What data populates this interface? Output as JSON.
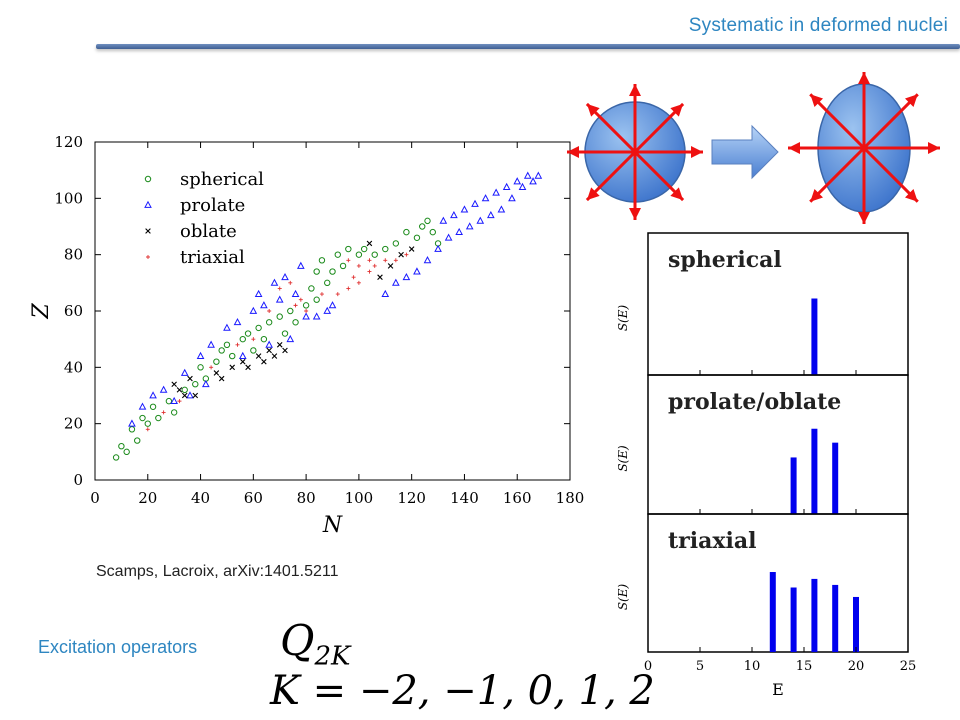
{
  "slide": {
    "title": "Systematic in deformed nuclei",
    "citation": "Scamps, Lacroix, arXiv:1401.5211",
    "excitation_label": "Excitation operators",
    "formula_operator": "Q",
    "formula_operator_sub": "2K",
    "formula_k": "K = −2, −1, 0, 1, 2"
  },
  "colors": {
    "title_blue": "#2e86c1",
    "spherical": "#1a8a1a",
    "prolate": "#1a1aff",
    "oblate": "#000000",
    "triaxial": "#e03030",
    "bar_blue": "#0000ee",
    "arrow_red": "#ee1111"
  },
  "chart_data": [
    {
      "type": "scatter",
      "title": "",
      "xlabel": "N",
      "ylabel": "Z",
      "xlim": [
        0,
        180
      ],
      "ylim": [
        0,
        120
      ],
      "xticks": [
        0,
        20,
        40,
        60,
        80,
        100,
        120,
        140,
        160,
        180
      ],
      "yticks": [
        0,
        20,
        40,
        60,
        80,
        100,
        120
      ],
      "legend": {
        "position": "top-left"
      },
      "series": [
        {
          "name": "spherical",
          "marker": "circle",
          "points": [
            [
              8,
              8
            ],
            [
              10,
              12
            ],
            [
              12,
              10
            ],
            [
              14,
              18
            ],
            [
              16,
              14
            ],
            [
              18,
              22
            ],
            [
              20,
              20
            ],
            [
              22,
              26
            ],
            [
              24,
              22
            ],
            [
              28,
              28
            ],
            [
              30,
              24
            ],
            [
              34,
              32
            ],
            [
              38,
              34
            ],
            [
              40,
              40
            ],
            [
              42,
              36
            ],
            [
              46,
              42
            ],
            [
              48,
              46
            ],
            [
              50,
              48
            ],
            [
              52,
              44
            ],
            [
              56,
              50
            ],
            [
              58,
              52
            ],
            [
              60,
              46
            ],
            [
              62,
              54
            ],
            [
              64,
              50
            ],
            [
              66,
              56
            ],
            [
              70,
              58
            ],
            [
              72,
              52
            ],
            [
              74,
              60
            ],
            [
              76,
              56
            ],
            [
              80,
              62
            ],
            [
              82,
              68
            ],
            [
              84,
              74
            ],
            [
              84,
              64
            ],
            [
              86,
              78
            ],
            [
              88,
              70
            ],
            [
              90,
              74
            ],
            [
              92,
              80
            ],
            [
              94,
              76
            ],
            [
              96,
              82
            ],
            [
              100,
              80
            ],
            [
              102,
              82
            ],
            [
              106,
              80
            ],
            [
              110,
              82
            ],
            [
              114,
              84
            ],
            [
              118,
              88
            ],
            [
              122,
              86
            ],
            [
              124,
              90
            ],
            [
              126,
              92
            ],
            [
              128,
              88
            ],
            [
              130,
              84
            ]
          ]
        },
        {
          "name": "prolate",
          "marker": "triangle",
          "points": [
            [
              14,
              20
            ],
            [
              18,
              26
            ],
            [
              22,
              30
            ],
            [
              26,
              32
            ],
            [
              30,
              28
            ],
            [
              34,
              38
            ],
            [
              36,
              30
            ],
            [
              40,
              44
            ],
            [
              42,
              34
            ],
            [
              44,
              48
            ],
            [
              50,
              54
            ],
            [
              54,
              56
            ],
            [
              56,
              44
            ],
            [
              60,
              60
            ],
            [
              62,
              66
            ],
            [
              64,
              62
            ],
            [
              66,
              48
            ],
            [
              68,
              70
            ],
            [
              70,
              64
            ],
            [
              72,
              72
            ],
            [
              74,
              50
            ],
            [
              76,
              66
            ],
            [
              78,
              76
            ],
            [
              80,
              58
            ],
            [
              84,
              58
            ],
            [
              88,
              60
            ],
            [
              90,
              62
            ],
            [
              110,
              66
            ],
            [
              114,
              70
            ],
            [
              118,
              72
            ],
            [
              122,
              74
            ],
            [
              126,
              78
            ],
            [
              130,
              82
            ],
            [
              132,
              92
            ],
            [
              134,
              86
            ],
            [
              136,
              94
            ],
            [
              138,
              88
            ],
            [
              140,
              96
            ],
            [
              142,
              90
            ],
            [
              144,
              98
            ],
            [
              146,
              92
            ],
            [
              148,
              100
            ],
            [
              150,
              94
            ],
            [
              152,
              102
            ],
            [
              154,
              96
            ],
            [
              156,
              104
            ],
            [
              158,
              100
            ],
            [
              160,
              106
            ],
            [
              162,
              104
            ],
            [
              164,
              108
            ],
            [
              166,
              106
            ],
            [
              168,
              108
            ]
          ]
        },
        {
          "name": "oblate",
          "marker": "cross",
          "points": [
            [
              30,
              34
            ],
            [
              32,
              32
            ],
            [
              34,
              30
            ],
            [
              36,
              36
            ],
            [
              38,
              30
            ],
            [
              46,
              38
            ],
            [
              48,
              36
            ],
            [
              52,
              40
            ],
            [
              56,
              42
            ],
            [
              58,
              40
            ],
            [
              62,
              44
            ],
            [
              64,
              42
            ],
            [
              66,
              46
            ],
            [
              68,
              44
            ],
            [
              70,
              48
            ],
            [
              72,
              46
            ],
            [
              108,
              72
            ],
            [
              112,
              76
            ],
            [
              116,
              80
            ],
            [
              120,
              82
            ],
            [
              104,
              84
            ]
          ]
        },
        {
          "name": "triaxial",
          "marker": "plus",
          "points": [
            [
              20,
              18
            ],
            [
              26,
              24
            ],
            [
              32,
              28
            ],
            [
              44,
              40
            ],
            [
              54,
              48
            ],
            [
              60,
              50
            ],
            [
              66,
              60
            ],
            [
              70,
              68
            ],
            [
              74,
              70
            ],
            [
              76,
              62
            ],
            [
              78,
              64
            ],
            [
              80,
              60
            ],
            [
              86,
              66
            ],
            [
              92,
              66
            ],
            [
              96,
              68
            ],
            [
              98,
              72
            ],
            [
              100,
              70
            ],
            [
              104,
              74
            ],
            [
              106,
              76
            ],
            [
              110,
              78
            ],
            [
              114,
              78
            ],
            [
              118,
              80
            ],
            [
              96,
              78
            ],
            [
              100,
              76
            ],
            [
              104,
              78
            ]
          ]
        }
      ]
    },
    {
      "type": "bar",
      "title": "spherical",
      "ylabel": "S(E)",
      "xlim": [
        0,
        25
      ],
      "x": [
        16
      ],
      "values": [
        0.85
      ]
    },
    {
      "type": "bar",
      "title": "prolate/oblate",
      "ylabel": "S(E)",
      "xlim": [
        0,
        25
      ],
      "x": [
        14,
        16,
        18
      ],
      "values": [
        0.65,
        0.98,
        0.82
      ]
    },
    {
      "type": "bar",
      "title": "triaxial",
      "ylabel": "S(E)",
      "xlabel": "E",
      "xlim": [
        0,
        25
      ],
      "xticks": [
        0,
        5,
        10,
        15,
        20,
        25
      ],
      "x": [
        12,
        14,
        16,
        18,
        20
      ],
      "values": [
        0.93,
        0.75,
        0.85,
        0.78,
        0.64
      ]
    }
  ]
}
